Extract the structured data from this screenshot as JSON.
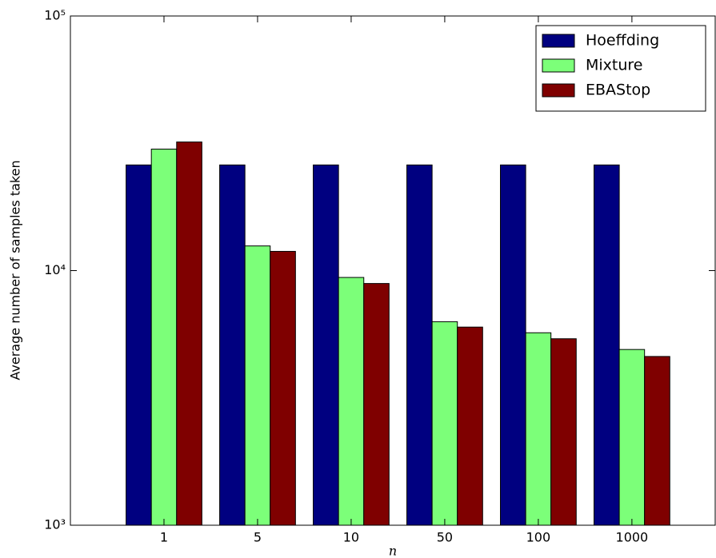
{
  "chart_data": {
    "type": "bar",
    "ylabel": "Average number of samples taken",
    "xlabel": "n",
    "categories": [
      "1",
      "5",
      "10",
      "50",
      "100",
      "1000"
    ],
    "series": [
      {
        "name": "Hoeffding",
        "color": "#000080",
        "values": [
          26000,
          26000,
          26000,
          26000,
          26000,
          26000
        ]
      },
      {
        "name": "Mixture",
        "color": "#7cff79",
        "values": [
          30000,
          12500,
          9400,
          6300,
          5700,
          4900
        ]
      },
      {
        "name": "EBAStop",
        "color": "#7f0000",
        "values": [
          32000,
          11900,
          8900,
          6000,
          5400,
          4600
        ]
      }
    ],
    "ylim": [
      1000,
      100000
    ],
    "log_y": true,
    "yticks": [
      {
        "value": 1000,
        "label": "10³"
      },
      {
        "value": 10000,
        "label": "10⁴"
      },
      {
        "value": 100000,
        "label": "10⁵"
      }
    ],
    "legend": "upper right"
  }
}
